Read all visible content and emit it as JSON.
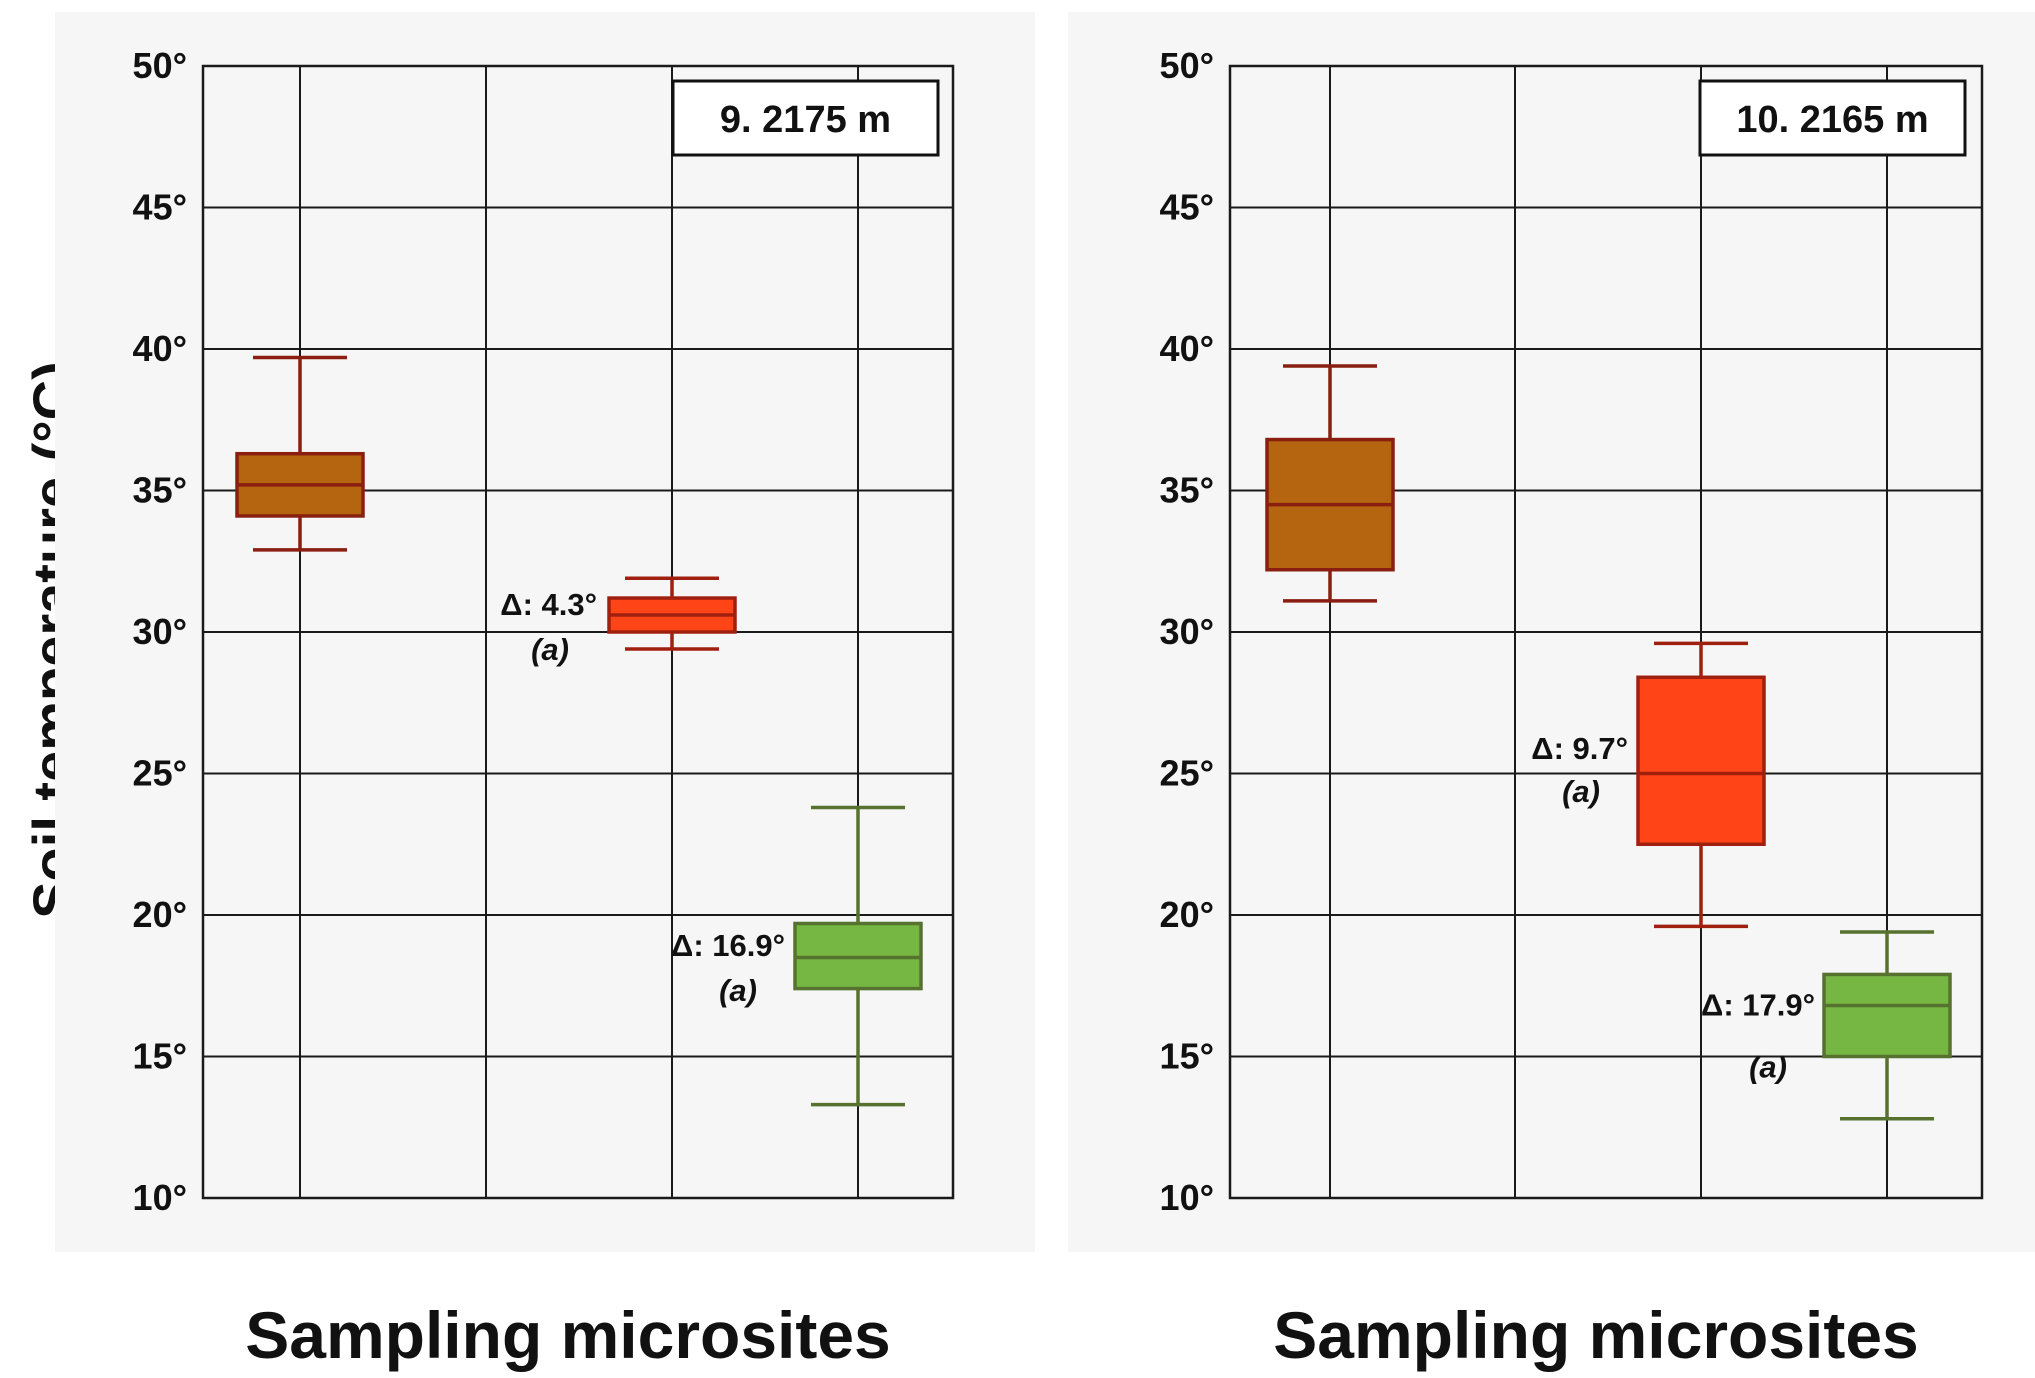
{
  "shared": {
    "ylabel": "Soil temperature (°C)",
    "xlabel": "Sampling microsites",
    "ytick_labels": [
      "10°",
      "15°",
      "20°",
      "25°",
      "30°",
      "35°",
      "40°",
      "45°",
      "50°"
    ]
  },
  "chart_data": [
    {
      "type": "box",
      "title": "9. 2175 m",
      "xlabel": "Sampling microsites",
      "ylabel": "Soil temperature (°C)",
      "ylim": [
        10,
        50
      ],
      "yticks": [
        10,
        15,
        20,
        25,
        30,
        35,
        40,
        45,
        50
      ],
      "grid": true,
      "boxes": [
        {
          "color": "#b5650f",
          "edge": "#8a1e10",
          "whisker_low": 32.9,
          "q1": 34.1,
          "median": 35.2,
          "q3": 36.3,
          "whisker_high": 39.7
        },
        {
          "color": "#ff4518",
          "edge": "#a02010",
          "whisker_low": 29.4,
          "q1": 30.0,
          "median": 30.6,
          "q3": 31.2,
          "whisker_high": 31.9,
          "delta": "Δ: 4.3°",
          "sig": "(a)"
        },
        {
          "color": "#76b743",
          "edge": "#57722f",
          "whisker_low": 13.3,
          "q1": 17.4,
          "median": 18.5,
          "q3": 19.7,
          "whisker_high": 23.8,
          "delta": "Δ: 16.9°",
          "sig": "(a)"
        }
      ]
    },
    {
      "type": "box",
      "title": "10. 2165 m",
      "xlabel": "Sampling microsites",
      "ylim": [
        10,
        50
      ],
      "yticks": [
        10,
        15,
        20,
        25,
        30,
        35,
        40,
        45,
        50
      ],
      "grid": true,
      "boxes": [
        {
          "color": "#b5650f",
          "edge": "#8a1e10",
          "whisker_low": 31.1,
          "q1": 32.2,
          "median": 34.5,
          "q3": 36.8,
          "whisker_high": 39.4
        },
        {
          "color": "#ff4518",
          "edge": "#a02010",
          "whisker_low": 19.6,
          "q1": 22.5,
          "median": 25.0,
          "q3": 28.4,
          "whisker_high": 29.6,
          "delta": "Δ: 9.7°",
          "sig": "(a)"
        },
        {
          "color": "#76b743",
          "edge": "#57722f",
          "whisker_low": 12.8,
          "q1": 15.0,
          "median": 16.8,
          "q3": 17.9,
          "whisker_high": 19.4,
          "delta": "Δ: 17.9°",
          "sig": "(a)"
        }
      ]
    }
  ]
}
